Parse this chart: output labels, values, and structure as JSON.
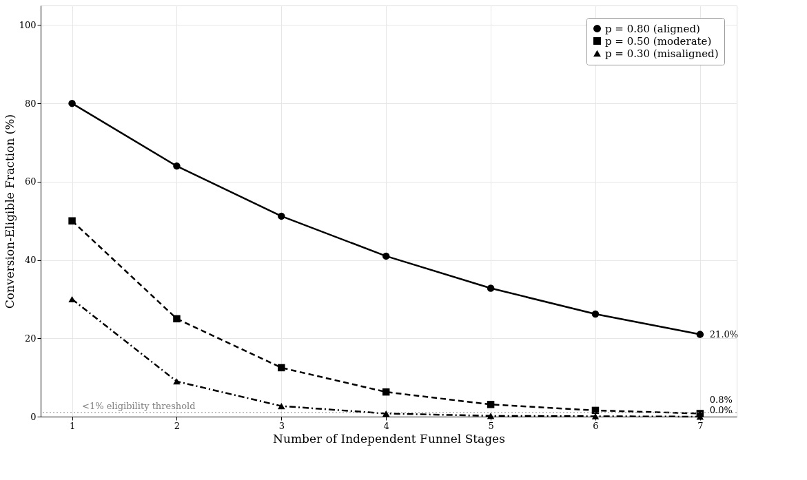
{
  "chart_data": {
    "type": "line",
    "xlabel": "Number of Independent Funnel Stages",
    "ylabel": "Conversion-Eligible Fraction (%)",
    "x": [
      1,
      2,
      3,
      4,
      5,
      6,
      7
    ],
    "series": [
      {
        "name": "p = 0.80 (aligned)",
        "color": "#000000",
        "marker": "circle",
        "line_style": "solid",
        "values": [
          80,
          64,
          51.2,
          41,
          32.8,
          26.2,
          21.0
        ],
        "value_labels": [
          null,
          null,
          null,
          null,
          null,
          null,
          "21.0%"
        ]
      },
      {
        "name": "p = 0.50 (moderate)",
        "color": "#000000",
        "marker": "square",
        "line_style": "dashed",
        "values": [
          50,
          25,
          12.5,
          6.3,
          3.1,
          1.6,
          0.8
        ],
        "value_labels": [
          null,
          null,
          null,
          null,
          null,
          null,
          "0.8%"
        ]
      },
      {
        "name": "p = 0.30 (misaligned)",
        "color": "#000000",
        "marker": "triangle",
        "line_style": "dashdot",
        "values": [
          30,
          9,
          2.7,
          0.8,
          0.2,
          0.1,
          0.0
        ],
        "value_labels": [
          null,
          null,
          null,
          null,
          null,
          null,
          "0.0%"
        ]
      }
    ],
    "xlim": [
      0.7,
      7.35
    ],
    "xticks": [
      1,
      2,
      3,
      4,
      5,
      6,
      7
    ],
    "ylim": [
      0,
      105
    ],
    "yticks": [
      0,
      20,
      40,
      60,
      80,
      100
    ],
    "ref_lines": [
      {
        "axis": "y",
        "value": 1,
        "label": "<1% eligibility threshold",
        "color": "#808080",
        "line_style": "dotted"
      }
    ],
    "grid": true,
    "legend": "top right"
  }
}
